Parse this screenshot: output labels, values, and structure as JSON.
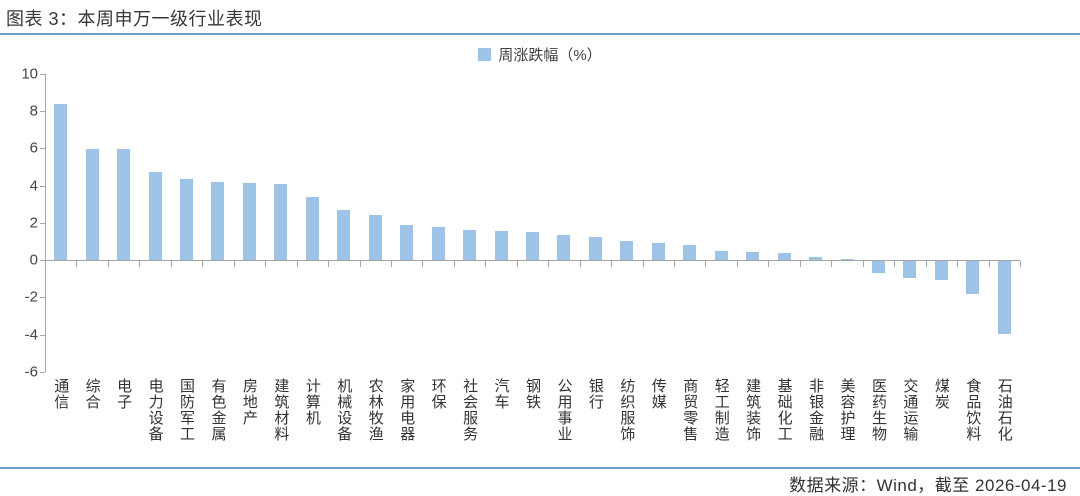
{
  "header": {
    "title": "图表 3：本周申万一级行业表现"
  },
  "legend": {
    "label": "周涨跌幅（%）"
  },
  "footer": {
    "source": "数据来源：Wind，截至 2026-04-19"
  },
  "colors": {
    "bar": "#9dc3e6",
    "rule": "#6c9ec4",
    "axis": "#a6a6a6",
    "axis_text": "#454545"
  },
  "chart_data": {
    "type": "bar",
    "title": "本周申万一级行业表现",
    "legend_entries": [
      "周涨跌幅（%）"
    ],
    "legend_position": "top-center",
    "grid": false,
    "ylim": [
      -6,
      10
    ],
    "yticks": [
      10,
      8,
      6,
      4,
      2,
      0,
      -2,
      -4,
      -6
    ],
    "xlabel": "",
    "ylabel": "",
    "categories": [
      "通信",
      "综合",
      "电子",
      "电力设备",
      "国防军工",
      "有色金属",
      "房地产",
      "建筑材料",
      "计算机",
      "机械设备",
      "农林牧渔",
      "家用电器",
      "环保",
      "社会服务",
      "汽车",
      "钢铁",
      "公用事业",
      "银行",
      "纺织服饰",
      "传媒",
      "商贸零售",
      "轻工制造",
      "建筑装饰",
      "基础化工",
      "非银金融",
      "美容护理",
      "医药生物",
      "交通运输",
      "煤炭",
      "食品饮料",
      "石油石化"
    ],
    "values": [
      8.4,
      5.95,
      5.95,
      4.75,
      4.35,
      4.2,
      4.15,
      4.1,
      3.4,
      2.7,
      2.4,
      1.9,
      1.75,
      1.6,
      1.55,
      1.5,
      1.35,
      1.25,
      1.0,
      0.9,
      0.8,
      0.5,
      0.45,
      0.4,
      0.15,
      0.05,
      -0.65,
      -0.9,
      -1.0,
      -1.75,
      -3.9
    ]
  }
}
